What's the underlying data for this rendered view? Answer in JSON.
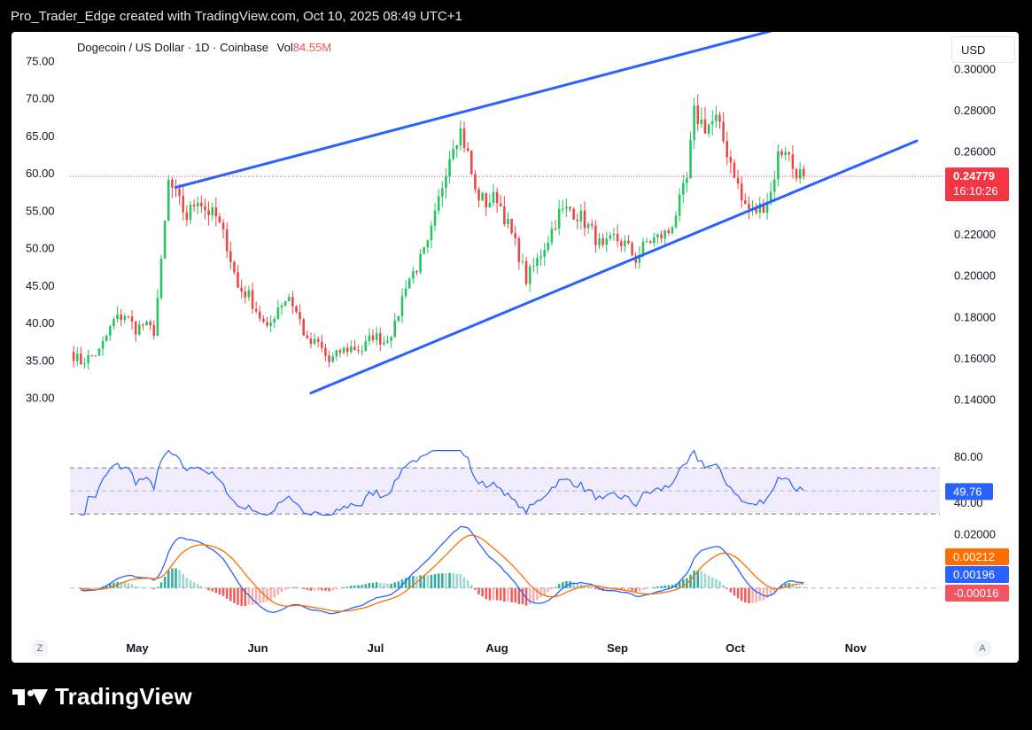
{
  "header": {
    "attribution": "Pro_Trader_Edge created with TradingView.com, Oct 10, 2025 08:49 UTC+1"
  },
  "legend": {
    "symbol": "Dogecoin / US Dollar · 1D · Coinbase",
    "vol_label": "Vol",
    "vol_value": "84.55M"
  },
  "currency_button": "USD",
  "corner_left": "Z",
  "corner_right": "A",
  "brand": "TradingView",
  "colors": {
    "up": "#22c55e",
    "down": "#ef4444",
    "trendline": "#2962ff",
    "rsi": "#2962ff",
    "macd": "#2962ff",
    "signal": "#ff6d00",
    "hist_up": "#26a69a",
    "hist_down": "#ef5350",
    "price_badge": "#f23645"
  },
  "chart_data": [
    {
      "type": "candlestick",
      "title": "Dogecoin / US Dollar · 1D · Coinbase",
      "x_labels": [
        "May",
        "Jun",
        "Jul",
        "Aug",
        "Sep",
        "Oct",
        "Nov"
      ],
      "right_axis": {
        "ylim": [
          0.13,
          0.31
        ],
        "ticks": [
          "0.30000",
          "0.28000",
          "0.26000",
          "0.24000",
          "0.22000",
          "0.20000",
          "0.18000",
          "0.16000",
          "0.14000"
        ]
      },
      "left_axis": {
        "ylim": [
          27.0,
          76.7
        ],
        "ticks": [
          "75.00",
          "70.00",
          "65.00",
          "60.00",
          "55.00",
          "50.00",
          "45.00",
          "40.00",
          "35.00",
          "30.00"
        ]
      },
      "last_price": "0.24779",
      "countdown": "16:10:26",
      "waypoints": [
        [
          "2025-04-20",
          0.163
        ],
        [
          "2025-04-23",
          0.158
        ],
        [
          "2025-04-28",
          0.163
        ],
        [
          "2025-05-02",
          0.178
        ],
        [
          "2025-05-05",
          0.181
        ],
        [
          "2025-05-08",
          0.174
        ],
        [
          "2025-05-10",
          0.176
        ],
        [
          "2025-05-13",
          0.173
        ],
        [
          "2025-05-15",
          0.205
        ],
        [
          "2025-05-17",
          0.245
        ],
        [
          "2025-05-20",
          0.235
        ],
        [
          "2025-05-22",
          0.228
        ],
        [
          "2025-05-25",
          0.238
        ],
        [
          "2025-05-27",
          0.232
        ],
        [
          "2025-05-30",
          0.228
        ],
        [
          "2025-06-02",
          0.215
        ],
        [
          "2025-06-05",
          0.194
        ],
        [
          "2025-06-08",
          0.19
        ],
        [
          "2025-06-11",
          0.18
        ],
        [
          "2025-06-13",
          0.173
        ],
        [
          "2025-06-16",
          0.185
        ],
        [
          "2025-06-19",
          0.19
        ],
        [
          "2025-06-22",
          0.178
        ],
        [
          "2025-06-24",
          0.167
        ],
        [
          "2025-06-27",
          0.167
        ],
        [
          "2025-06-30",
          0.158
        ],
        [
          "2025-07-03",
          0.163
        ],
        [
          "2025-07-06",
          0.165
        ],
        [
          "2025-07-09",
          0.164
        ],
        [
          "2025-07-12",
          0.171
        ],
        [
          "2025-07-15",
          0.168
        ],
        [
          "2025-07-18",
          0.175
        ],
        [
          "2025-07-21",
          0.196
        ],
        [
          "2025-07-24",
          0.204
        ],
        [
          "2025-07-27",
          0.214
        ],
        [
          "2025-07-29",
          0.228
        ],
        [
          "2025-08-01",
          0.252
        ],
        [
          "2025-08-03",
          0.265
        ],
        [
          "2025-08-05",
          0.27
        ],
        [
          "2025-08-07",
          0.258
        ],
        [
          "2025-08-09",
          0.24
        ],
        [
          "2025-08-12",
          0.235
        ],
        [
          "2025-08-15",
          0.238
        ],
        [
          "2025-08-18",
          0.224
        ],
        [
          "2025-08-21",
          0.21
        ],
        [
          "2025-08-23",
          0.198
        ],
        [
          "2025-08-26",
          0.207
        ],
        [
          "2025-08-29",
          0.218
        ],
        [
          "2025-09-01",
          0.23
        ],
        [
          "2025-09-04",
          0.232
        ],
        [
          "2025-09-07",
          0.228
        ],
        [
          "2025-09-10",
          0.221
        ],
        [
          "2025-09-13",
          0.212
        ],
        [
          "2025-09-16",
          0.218
        ],
        [
          "2025-09-19",
          0.215
        ],
        [
          "2025-09-22",
          0.208
        ],
        [
          "2025-09-25",
          0.216
        ],
        [
          "2025-09-28",
          0.218
        ],
        [
          "2025-10-01",
          0.221
        ],
        [
          "2025-10-04",
          0.235
        ],
        [
          "2025-10-06",
          0.246
        ],
        [
          "2025-10-08",
          0.278
        ],
        [
          "2025-10-11",
          0.272
        ],
        [
          "2025-10-14",
          0.275
        ],
        [
          "2025-10-17",
          0.26
        ],
        [
          "2025-10-19",
          0.25
        ],
        [
          "2025-10-21",
          0.236
        ],
        [
          "2025-10-24",
          0.23
        ],
        [
          "2025-10-27",
          0.234
        ],
        [
          "2025-10-29",
          0.24
        ],
        [
          "2025-10-31",
          0.258
        ],
        [
          "2025-11-02",
          0.262
        ],
        [
          "2025-11-04",
          0.252
        ],
        [
          "2025-11-06",
          0.249
        ],
        [
          "2025-11-07",
          0.24779
        ]
      ],
      "trendlines": [
        {
          "name": "upper",
          "from": [
            "2025-05-19",
            0.2425
          ],
          "to": [
            "2025-11-16",
            0.3265
          ]
        },
        {
          "name": "lower",
          "from": [
            "2025-06-25",
            0.143
          ],
          "to": [
            "2025-12-08",
            0.265
          ]
        }
      ]
    },
    {
      "type": "line",
      "title": "RSI",
      "ylim": [
        27,
        87
      ],
      "ticks": [
        "80.00",
        "40.00"
      ],
      "band": [
        70,
        30
      ],
      "midline": 50,
      "last_value": "49.76"
    },
    {
      "type": "bar",
      "title": "MACD",
      "ylim": [
        -0.0145,
        0.0215
      ],
      "ticks": [
        "0.02000"
      ],
      "macd_last": "0.00196",
      "signal_last": "0.00212",
      "hist_last": "-0.00016"
    }
  ]
}
